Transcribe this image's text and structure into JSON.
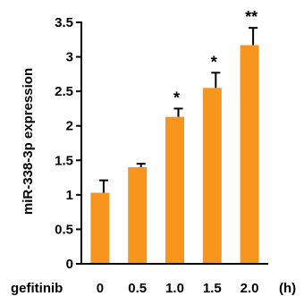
{
  "chart_data": {
    "type": "bar",
    "title": "",
    "xlabel": "gefitinib",
    "x_unit": "(h)",
    "ylabel": "miR-338-3p expression",
    "ylim": [
      0,
      3.5
    ],
    "yticks": [
      "0",
      "0.5",
      "1",
      "1.5",
      "2",
      "2.5",
      "3",
      "3.5"
    ],
    "categories": [
      "0",
      "0.5",
      "1.0",
      "1.5",
      "2.0"
    ],
    "values": [
      1.03,
      1.4,
      2.13,
      2.55,
      3.17
    ],
    "errors": [
      0.18,
      0.05,
      0.12,
      0.22,
      0.25
    ],
    "significance": [
      "",
      "",
      "*",
      "*",
      "**"
    ],
    "colors": {
      "bar": "#F7951D",
      "axis": "#000000"
    },
    "grid": false,
    "legend": "none"
  }
}
